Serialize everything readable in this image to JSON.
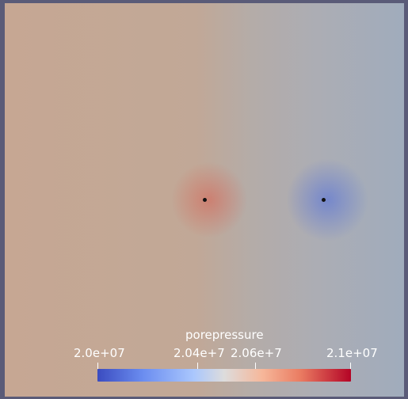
{
  "scene": {
    "background_color": "#5a5b78",
    "field_colors": {
      "left_region": "#c6a793",
      "right_region": "#a0acbc",
      "high_pressure_source": "#d85f50",
      "low_pressure_source": "#4a69de"
    },
    "probe_color": "#121212"
  },
  "legend": {
    "title": "porepressure",
    "ticks": [
      "2.0e+07",
      "2.04e+7",
      "2.06e+7",
      "2.1e+07"
    ],
    "colormap": [
      "#3b4cc0",
      "#6b8df0",
      "#aac7fd",
      "#dddcdc",
      "#f6b79a",
      "#ea7c62",
      "#b40426"
    ]
  }
}
